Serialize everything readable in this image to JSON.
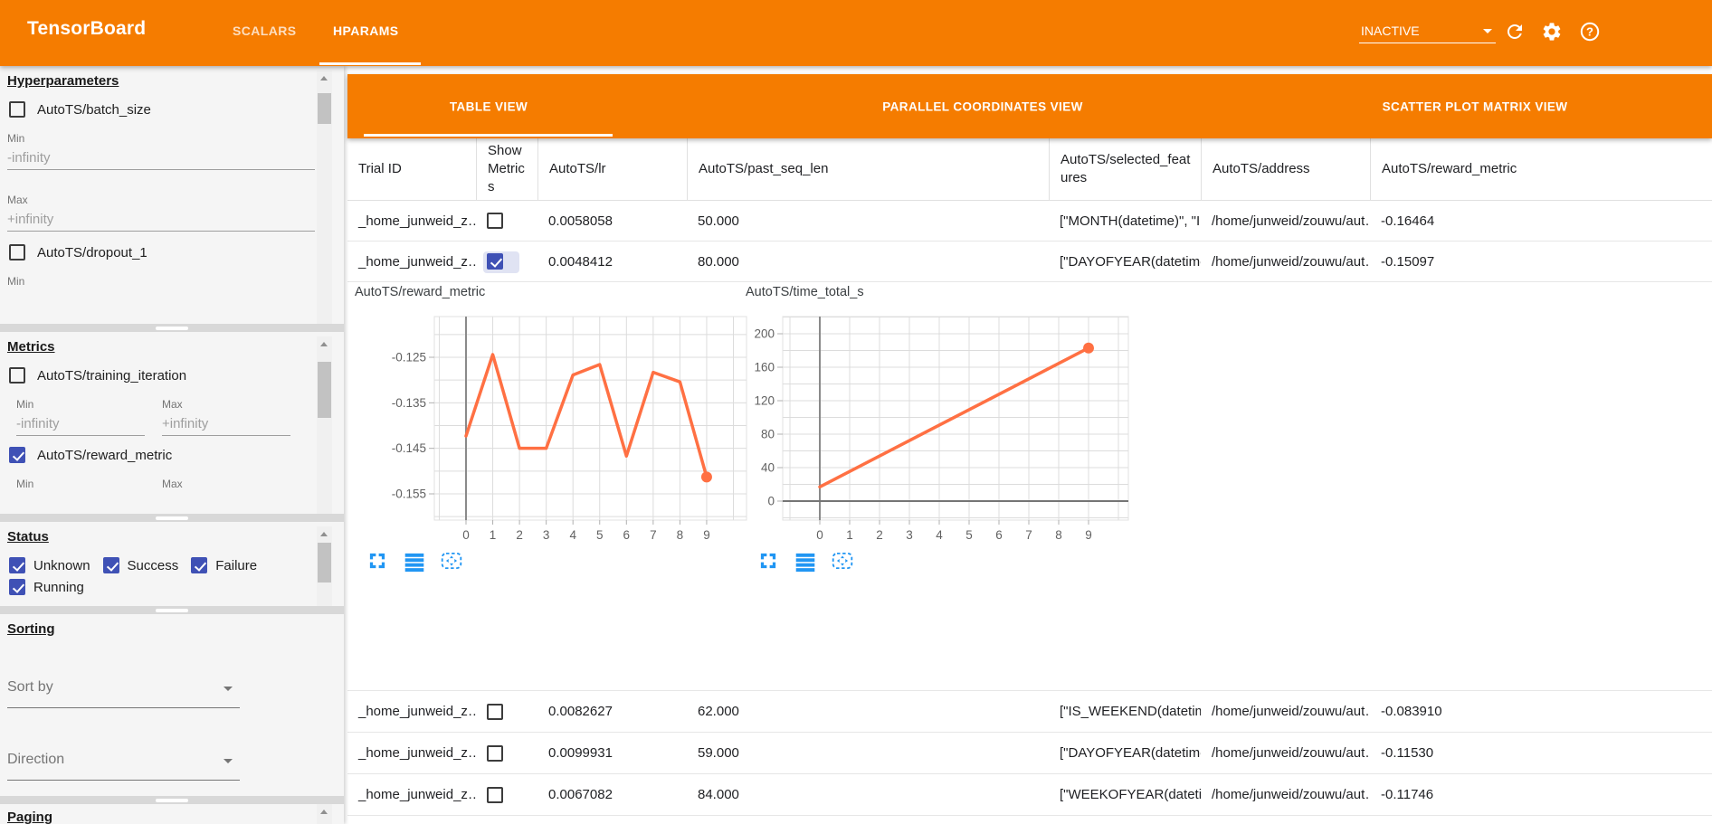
{
  "header": {
    "title": "TensorBoard",
    "nav_tabs": [
      {
        "label": "SCALARS",
        "active": false
      },
      {
        "label": "HPARAMS",
        "active": true
      }
    ],
    "run_selector_value": "INACTIVE",
    "icon_names": [
      "refresh-icon",
      "settings-gear-icon",
      "help-icon"
    ]
  },
  "sidebar": {
    "hyperparameters": {
      "heading": "Hyperparameters",
      "params": [
        {
          "label": "AutoTS/batch_size",
          "checked": false,
          "min_label": "Min",
          "min_value": "-infinity",
          "max_label": "Max",
          "max_value": "+infinity"
        },
        {
          "label": "AutoTS/dropout_1",
          "checked": false,
          "min_label": "Min"
        }
      ]
    },
    "metrics": {
      "heading": "Metrics",
      "items": [
        {
          "label": "AutoTS/training_iteration",
          "checked": false,
          "min_label": "Min",
          "min_value": "-infinity",
          "max_label": "Max",
          "max_value": "+infinity"
        },
        {
          "label": "AutoTS/reward_metric",
          "checked": true,
          "min_label": "Min",
          "max_label": "Max"
        }
      ]
    },
    "status": {
      "heading": "Status",
      "options": [
        {
          "label": "Unknown",
          "checked": true
        },
        {
          "label": "Success",
          "checked": true
        },
        {
          "label": "Failure",
          "checked": true
        },
        {
          "label": "Running",
          "checked": true
        }
      ]
    },
    "sorting": {
      "heading": "Sorting",
      "sort_by_label": "Sort by",
      "direction_label": "Direction"
    },
    "paging": {
      "heading": "Paging"
    }
  },
  "main": {
    "view_tabs": [
      {
        "label": "TABLE VIEW",
        "active": true
      },
      {
        "label": "PARALLEL COORDINATES VIEW",
        "active": false
      },
      {
        "label": "SCATTER PLOT MATRIX VIEW",
        "active": false
      }
    ],
    "table": {
      "columns": [
        "Trial ID",
        "Show Metrics",
        "AutoTS/lr",
        "AutoTS/past_seq_len",
        "AutoTS/selected_features",
        "AutoTS/address",
        "AutoTS/reward_metric"
      ],
      "rows_top": [
        {
          "trial_id": "_home_junweid_z…",
          "show_metrics": false,
          "lr": "0.0058058",
          "past_seq_len": "50.000",
          "selected_features": "[\"MONTH(datetime)\", \"I…",
          "address": "/home/junweid/zouwu/aut…",
          "reward_metric": "-0.16464"
        },
        {
          "trial_id": "_home_junweid_z…",
          "show_metrics": true,
          "lr": "0.0048412",
          "past_seq_len": "80.000",
          "selected_features": "[\"DAYOFYEAR(datetime…",
          "address": "/home/junweid/zouwu/aut…",
          "reward_metric": "-0.15097"
        }
      ],
      "rows_bottom": [
        {
          "trial_id": "_home_junweid_z…",
          "show_metrics": false,
          "lr": "0.0082627",
          "past_seq_len": "62.000",
          "selected_features": "[\"IS_WEEKEND(datetim…",
          "address": "/home/junweid/zouwu/aut…",
          "reward_metric": "-0.083910"
        },
        {
          "trial_id": "_home_junweid_z…",
          "show_metrics": false,
          "lr": "0.0099931",
          "past_seq_len": "59.000",
          "selected_features": "[\"DAYOFYEAR(datetime…",
          "address": "/home/junweid/zouwu/aut…",
          "reward_metric": "-0.11530"
        },
        {
          "trial_id": "_home_junweid_z…",
          "show_metrics": false,
          "lr": "0.0067082",
          "past_seq_len": "84.000",
          "selected_features": "[\"WEEKOFYEAR(dateti…",
          "address": "/home/junweid/zouwu/aut…",
          "reward_metric": "-0.11746"
        }
      ]
    }
  },
  "chart_data": [
    {
      "type": "line",
      "title": "AutoTS/reward_metric",
      "x": [
        0,
        1,
        2,
        3,
        4,
        5,
        6,
        7,
        8,
        9
      ],
      "values": [
        -0.1423,
        -0.1244,
        -0.145,
        -0.145,
        -0.1289,
        -0.1266,
        -0.1467,
        -0.1283,
        -0.1304,
        -0.1513
      ],
      "xticks": [
        0,
        1,
        2,
        3,
        4,
        5,
        6,
        7,
        8,
        9
      ],
      "yticks": [
        -0.125,
        -0.135,
        -0.145,
        -0.155
      ],
      "ytick_labels": [
        "-0.125",
        "-0.135",
        "-0.145",
        "-0.155"
      ],
      "ylim": [
        -0.1608,
        -0.1161
      ],
      "xlabel": "",
      "ylabel": "",
      "grid": true,
      "line_color": "#ff7043",
      "end_marker": true,
      "zero_axis": false
    },
    {
      "type": "line",
      "title": "AutoTS/time_total_s",
      "x": [
        0,
        9
      ],
      "values": [
        17,
        183
      ],
      "xticks": [
        0,
        1,
        2,
        3,
        4,
        5,
        6,
        7,
        8,
        9
      ],
      "yticks": [
        0,
        40,
        80,
        120,
        160,
        200
      ],
      "ytick_labels": [
        "0",
        "40",
        "80",
        "120",
        "160",
        "200"
      ],
      "ylim": [
        -23,
        220
      ],
      "xlabel": "",
      "ylabel": "",
      "grid": true,
      "line_color": "#ff7043",
      "end_marker": true,
      "zero_axis": true
    }
  ],
  "colors": {
    "accent_orange": "#f57c00",
    "checkbox_blue": "#3f51b5",
    "chart_line": "#ff7043",
    "tool_icon_blue": "#2196f3"
  }
}
